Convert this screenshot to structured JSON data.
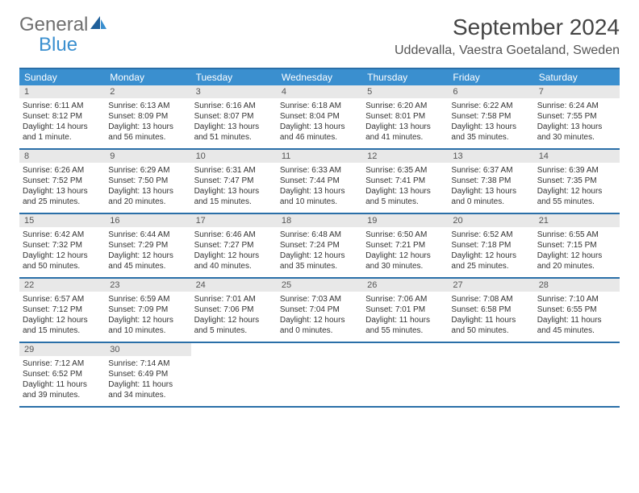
{
  "brand": {
    "general": "General",
    "blue": "Blue"
  },
  "title": "September 2024",
  "location": "Uddevalla, Vaestra Goetaland, Sweden",
  "colors": {
    "header_bg": "#3a8fcf",
    "rule": "#2a6fa8",
    "daynum_bg": "#e8e8e8",
    "logo_gray": "#6f6f6f",
    "logo_blue": "#3a8fcf"
  },
  "dow": [
    "Sunday",
    "Monday",
    "Tuesday",
    "Wednesday",
    "Thursday",
    "Friday",
    "Saturday"
  ],
  "weeks": [
    [
      {
        "n": "1",
        "sr": "Sunrise: 6:11 AM",
        "ss": "Sunset: 8:12 PM",
        "dl": "Daylight: 14 hours and 1 minute."
      },
      {
        "n": "2",
        "sr": "Sunrise: 6:13 AM",
        "ss": "Sunset: 8:09 PM",
        "dl": "Daylight: 13 hours and 56 minutes."
      },
      {
        "n": "3",
        "sr": "Sunrise: 6:16 AM",
        "ss": "Sunset: 8:07 PM",
        "dl": "Daylight: 13 hours and 51 minutes."
      },
      {
        "n": "4",
        "sr": "Sunrise: 6:18 AM",
        "ss": "Sunset: 8:04 PM",
        "dl": "Daylight: 13 hours and 46 minutes."
      },
      {
        "n": "5",
        "sr": "Sunrise: 6:20 AM",
        "ss": "Sunset: 8:01 PM",
        "dl": "Daylight: 13 hours and 41 minutes."
      },
      {
        "n": "6",
        "sr": "Sunrise: 6:22 AM",
        "ss": "Sunset: 7:58 PM",
        "dl": "Daylight: 13 hours and 35 minutes."
      },
      {
        "n": "7",
        "sr": "Sunrise: 6:24 AM",
        "ss": "Sunset: 7:55 PM",
        "dl": "Daylight: 13 hours and 30 minutes."
      }
    ],
    [
      {
        "n": "8",
        "sr": "Sunrise: 6:26 AM",
        "ss": "Sunset: 7:52 PM",
        "dl": "Daylight: 13 hours and 25 minutes."
      },
      {
        "n": "9",
        "sr": "Sunrise: 6:29 AM",
        "ss": "Sunset: 7:50 PM",
        "dl": "Daylight: 13 hours and 20 minutes."
      },
      {
        "n": "10",
        "sr": "Sunrise: 6:31 AM",
        "ss": "Sunset: 7:47 PM",
        "dl": "Daylight: 13 hours and 15 minutes."
      },
      {
        "n": "11",
        "sr": "Sunrise: 6:33 AM",
        "ss": "Sunset: 7:44 PM",
        "dl": "Daylight: 13 hours and 10 minutes."
      },
      {
        "n": "12",
        "sr": "Sunrise: 6:35 AM",
        "ss": "Sunset: 7:41 PM",
        "dl": "Daylight: 13 hours and 5 minutes."
      },
      {
        "n": "13",
        "sr": "Sunrise: 6:37 AM",
        "ss": "Sunset: 7:38 PM",
        "dl": "Daylight: 13 hours and 0 minutes."
      },
      {
        "n": "14",
        "sr": "Sunrise: 6:39 AM",
        "ss": "Sunset: 7:35 PM",
        "dl": "Daylight: 12 hours and 55 minutes."
      }
    ],
    [
      {
        "n": "15",
        "sr": "Sunrise: 6:42 AM",
        "ss": "Sunset: 7:32 PM",
        "dl": "Daylight: 12 hours and 50 minutes."
      },
      {
        "n": "16",
        "sr": "Sunrise: 6:44 AM",
        "ss": "Sunset: 7:29 PM",
        "dl": "Daylight: 12 hours and 45 minutes."
      },
      {
        "n": "17",
        "sr": "Sunrise: 6:46 AM",
        "ss": "Sunset: 7:27 PM",
        "dl": "Daylight: 12 hours and 40 minutes."
      },
      {
        "n": "18",
        "sr": "Sunrise: 6:48 AM",
        "ss": "Sunset: 7:24 PM",
        "dl": "Daylight: 12 hours and 35 minutes."
      },
      {
        "n": "19",
        "sr": "Sunrise: 6:50 AM",
        "ss": "Sunset: 7:21 PM",
        "dl": "Daylight: 12 hours and 30 minutes."
      },
      {
        "n": "20",
        "sr": "Sunrise: 6:52 AM",
        "ss": "Sunset: 7:18 PM",
        "dl": "Daylight: 12 hours and 25 minutes."
      },
      {
        "n": "21",
        "sr": "Sunrise: 6:55 AM",
        "ss": "Sunset: 7:15 PM",
        "dl": "Daylight: 12 hours and 20 minutes."
      }
    ],
    [
      {
        "n": "22",
        "sr": "Sunrise: 6:57 AM",
        "ss": "Sunset: 7:12 PM",
        "dl": "Daylight: 12 hours and 15 minutes."
      },
      {
        "n": "23",
        "sr": "Sunrise: 6:59 AM",
        "ss": "Sunset: 7:09 PM",
        "dl": "Daylight: 12 hours and 10 minutes."
      },
      {
        "n": "24",
        "sr": "Sunrise: 7:01 AM",
        "ss": "Sunset: 7:06 PM",
        "dl": "Daylight: 12 hours and 5 minutes."
      },
      {
        "n": "25",
        "sr": "Sunrise: 7:03 AM",
        "ss": "Sunset: 7:04 PM",
        "dl": "Daylight: 12 hours and 0 minutes."
      },
      {
        "n": "26",
        "sr": "Sunrise: 7:06 AM",
        "ss": "Sunset: 7:01 PM",
        "dl": "Daylight: 11 hours and 55 minutes."
      },
      {
        "n": "27",
        "sr": "Sunrise: 7:08 AM",
        "ss": "Sunset: 6:58 PM",
        "dl": "Daylight: 11 hours and 50 minutes."
      },
      {
        "n": "28",
        "sr": "Sunrise: 7:10 AM",
        "ss": "Sunset: 6:55 PM",
        "dl": "Daylight: 11 hours and 45 minutes."
      }
    ],
    [
      {
        "n": "29",
        "sr": "Sunrise: 7:12 AM",
        "ss": "Sunset: 6:52 PM",
        "dl": "Daylight: 11 hours and 39 minutes."
      },
      {
        "n": "30",
        "sr": "Sunrise: 7:14 AM",
        "ss": "Sunset: 6:49 PM",
        "dl": "Daylight: 11 hours and 34 minutes."
      },
      {
        "empty": true
      },
      {
        "empty": true
      },
      {
        "empty": true
      },
      {
        "empty": true
      },
      {
        "empty": true
      }
    ]
  ]
}
